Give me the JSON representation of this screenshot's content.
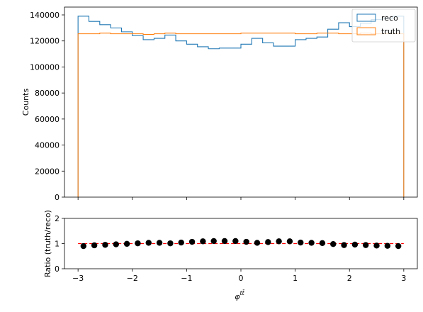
{
  "chart_data": [
    {
      "type": "histogram",
      "ylabel": "Counts",
      "xlim": [
        -3.25,
        3.25
      ],
      "ylim": [
        0,
        146000
      ],
      "yticks": [
        0,
        20000,
        40000,
        60000,
        80000,
        100000,
        120000,
        140000
      ],
      "xticks": [
        -3,
        -2,
        -1,
        0,
        1,
        2,
        3
      ],
      "legend_position": "top-right",
      "bin_edges": [
        -3.0,
        -2.8,
        -2.6,
        -2.4,
        -2.2,
        -2.0,
        -1.8,
        -1.6,
        -1.4,
        -1.2,
        -1.0,
        -0.8,
        -0.6,
        -0.4,
        -0.2,
        0.0,
        0.2,
        0.4,
        0.6,
        0.8,
        1.0,
        1.2,
        1.4,
        1.6,
        1.8,
        2.0,
        2.2,
        2.4,
        2.6,
        2.8,
        3.0
      ],
      "series": [
        {
          "name": "reco",
          "color": "#1f77b4",
          "values": [
            139000,
            135000,
            132500,
            130000,
            127000,
            124000,
            121000,
            122000,
            124500,
            120000,
            117500,
            115500,
            114000,
            114500,
            114500,
            117500,
            122000,
            118500,
            116000,
            116000,
            121000,
            122000,
            123000,
            129000,
            134000,
            131000,
            133500,
            136500,
            137500,
            139000
          ]
        },
        {
          "name": "truth",
          "color": "#ff7f0e",
          "values": [
            125500,
            125500,
            126000,
            125500,
            125500,
            125500,
            125000,
            125500,
            126000,
            125500,
            125500,
            125500,
            125500,
            125500,
            125500,
            126000,
            126000,
            126000,
            126000,
            126000,
            125500,
            125500,
            126000,
            126000,
            125500,
            125500,
            126000,
            125500,
            125500,
            125500
          ]
        }
      ]
    },
    {
      "type": "scatter",
      "xlabel": "φ^{tt̄}",
      "ylabel": "Ratio (truth/reco)",
      "xlim": [
        -3.25,
        3.25
      ],
      "ylim": [
        0,
        2
      ],
      "yticks": [
        0,
        1,
        2
      ],
      "xticks": [
        -3,
        -2,
        -1,
        0,
        1,
        2,
        3
      ],
      "reference_line": {
        "y": 1,
        "color": "#ff0000",
        "style": "dashed"
      },
      "marker_color": "#000000",
      "x": [
        -2.9,
        -2.7,
        -2.5,
        -2.3,
        -2.1,
        -1.9,
        -1.7,
        -1.5,
        -1.3,
        -1.1,
        -0.9,
        -0.7,
        -0.5,
        -0.3,
        -0.1,
        0.1,
        0.3,
        0.5,
        0.7,
        0.9,
        1.1,
        1.3,
        1.5,
        1.7,
        1.9,
        2.1,
        2.3,
        2.5,
        2.7,
        2.9
      ],
      "y": [
        0.9,
        0.93,
        0.95,
        0.97,
        0.99,
        1.01,
        1.03,
        1.03,
        1.01,
        1.04,
        1.07,
        1.09,
        1.1,
        1.1,
        1.1,
        1.07,
        1.03,
        1.06,
        1.09,
        1.09,
        1.04,
        1.03,
        1.02,
        0.98,
        0.94,
        0.96,
        0.94,
        0.92,
        0.91,
        0.9
      ]
    }
  ],
  "main_panel": {
    "ylabel": "Counts",
    "ytick_labels": [
      "0",
      "20000",
      "40000",
      "60000",
      "80000",
      "100000",
      "120000",
      "140000"
    ],
    "legend": [
      {
        "label": "reco",
        "color": "#1f77b4"
      },
      {
        "label": "truth",
        "color": "#ff7f0e"
      }
    ]
  },
  "ratio_panel": {
    "ylabel": "Ratio (truth/reco)",
    "ytick_labels": [
      "0",
      "1",
      "2"
    ],
    "xtick_labels": [
      "−3",
      "−2",
      "−1",
      "0",
      "1",
      "2",
      "3"
    ],
    "xlabel_base": "φ",
    "xlabel_sup": "tt̄"
  }
}
